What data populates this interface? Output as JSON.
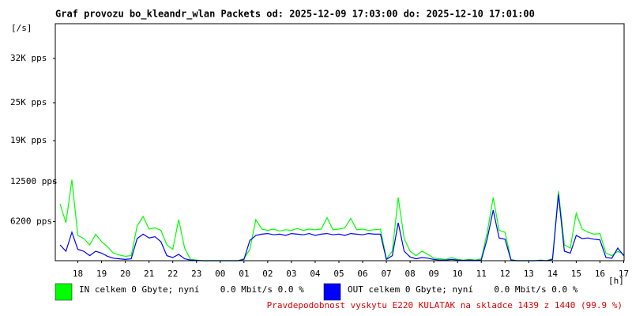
{
  "chart_data": {
    "type": "line",
    "title": "Graf provozu bo_kleandr_wlan Packets od: 2025-12-09 17:03:00 do: 2025-12-10 17:01:00",
    "y_label": "[/s]",
    "x_label": "[h]",
    "ylim": [
      0,
      37500
    ],
    "yticks": [
      {
        "value": 6200,
        "label": "6200 pps"
      },
      {
        "value": 12500,
        "label": "12500 pps"
      },
      {
        "value": 19000,
        "label": "19K pps"
      },
      {
        "value": 25000,
        "label": "25K pps"
      },
      {
        "value": 32000,
        "label": "32K pps"
      }
    ],
    "xlim": [
      17.05,
      41.017
    ],
    "xticks": [
      18,
      19,
      20,
      21,
      22,
      23,
      {
        "value": 24,
        "label": "00"
      },
      {
        "value": 25,
        "label": "01"
      },
      {
        "value": 26,
        "label": "02"
      },
      {
        "value": 27,
        "label": "03"
      },
      {
        "value": 28,
        "label": "04"
      },
      {
        "value": 29,
        "label": "05"
      },
      {
        "value": 30,
        "label": "06"
      },
      {
        "value": 31,
        "label": "07"
      },
      {
        "value": 32,
        "label": "08"
      },
      {
        "value": 33,
        "label": "09"
      },
      {
        "value": 34,
        "label": "10"
      },
      {
        "value": 35,
        "label": "11"
      },
      {
        "value": 36,
        "label": "12"
      },
      {
        "value": 37,
        "label": "13"
      },
      {
        "value": 38,
        "label": "14"
      },
      {
        "value": 39,
        "label": "15"
      },
      {
        "value": 40,
        "label": "16"
      },
      {
        "value": 41,
        "label": "17"
      }
    ],
    "x": [
      17.25,
      17.5,
      17.75,
      18,
      18.25,
      18.5,
      18.75,
      19,
      19.25,
      19.5,
      19.75,
      20,
      20.25,
      20.5,
      20.75,
      21,
      21.25,
      21.5,
      21.75,
      22,
      22.25,
      22.5,
      22.75,
      23,
      23.25,
      23.5,
      23.75,
      24,
      24.25,
      24.5,
      24.75,
      25,
      25.25,
      25.5,
      25.75,
      26,
      26.25,
      26.5,
      26.75,
      27,
      27.25,
      27.5,
      27.75,
      28,
      28.25,
      28.5,
      28.75,
      29,
      29.25,
      29.5,
      29.75,
      30,
      30.25,
      30.5,
      30.75,
      31,
      31.25,
      31.5,
      31.75,
      32,
      32.25,
      32.5,
      32.75,
      33,
      33.25,
      33.5,
      33.75,
      34,
      34.25,
      34.5,
      34.75,
      35,
      35.25,
      35.5,
      35.75,
      36,
      36.25,
      36.5,
      36.75,
      37,
      37.25,
      37.5,
      37.75,
      38,
      38.25,
      38.5,
      38.75,
      39,
      39.25,
      39.5,
      39.75,
      40,
      40.25,
      40.5,
      40.75,
      41
    ],
    "series": [
      {
        "name": "IN celkem 0 Gbyte; nyní    0.0 Mbit/s 0.0 %",
        "color": "#00ff00",
        "values": [
          9000,
          6000,
          12800,
          4000,
          3500,
          2500,
          4200,
          3000,
          2200,
          1200,
          900,
          700,
          800,
          5500,
          7000,
          5000,
          5200,
          4800,
          2500,
          1800,
          6500,
          2000,
          200,
          100,
          0,
          0,
          0,
          0,
          0,
          0,
          0,
          300,
          1800,
          6500,
          5000,
          4800,
          5000,
          4700,
          4900,
          4800,
          5100,
          4800,
          5000,
          4900,
          5000,
          6800,
          4900,
          5000,
          5200,
          6700,
          4900,
          5000,
          4800,
          4900,
          5000,
          300,
          1500,
          10000,
          3500,
          1500,
          800,
          1500,
          1000,
          400,
          300,
          200,
          500,
          200,
          100,
          200,
          100,
          300,
          4500,
          10000,
          4800,
          4500,
          200,
          0,
          0,
          0,
          0,
          100,
          0,
          300,
          11000,
          2500,
          2000,
          7500,
          5000,
          4500,
          4200,
          4300,
          1200,
          800,
          1500,
          1000
        ]
      },
      {
        "name": "OUT celkem 0 Gbyte; nyní    0.0 Mbit/s 0.0 %",
        "color": "#0000ff",
        "values": [
          2500,
          1500,
          4500,
          1800,
          1500,
          800,
          1500,
          1200,
          700,
          400,
          300,
          200,
          300,
          3500,
          4200,
          3600,
          3800,
          3000,
          800,
          500,
          1000,
          300,
          100,
          50,
          0,
          0,
          0,
          0,
          0,
          0,
          0,
          200,
          3200,
          4000,
          4200,
          4300,
          4100,
          4200,
          4000,
          4300,
          4200,
          4100,
          4300,
          4000,
          4200,
          4300,
          4100,
          4200,
          4000,
          4300,
          4200,
          4100,
          4300,
          4200,
          4200,
          200,
          800,
          6000,
          1500,
          600,
          300,
          500,
          400,
          200,
          100,
          100,
          200,
          100,
          50,
          100,
          50,
          100,
          3500,
          8000,
          3600,
          3400,
          100,
          0,
          0,
          0,
          0,
          50,
          0,
          200,
          10500,
          1500,
          1200,
          4000,
          3500,
          3600,
          3400,
          3300,
          500,
          400,
          2000,
          800
        ]
      }
    ],
    "footnote": "Pravdepodobnost vyskytu E220 KULATAK na skladce 1439 z 1440 (99.9 %)"
  }
}
